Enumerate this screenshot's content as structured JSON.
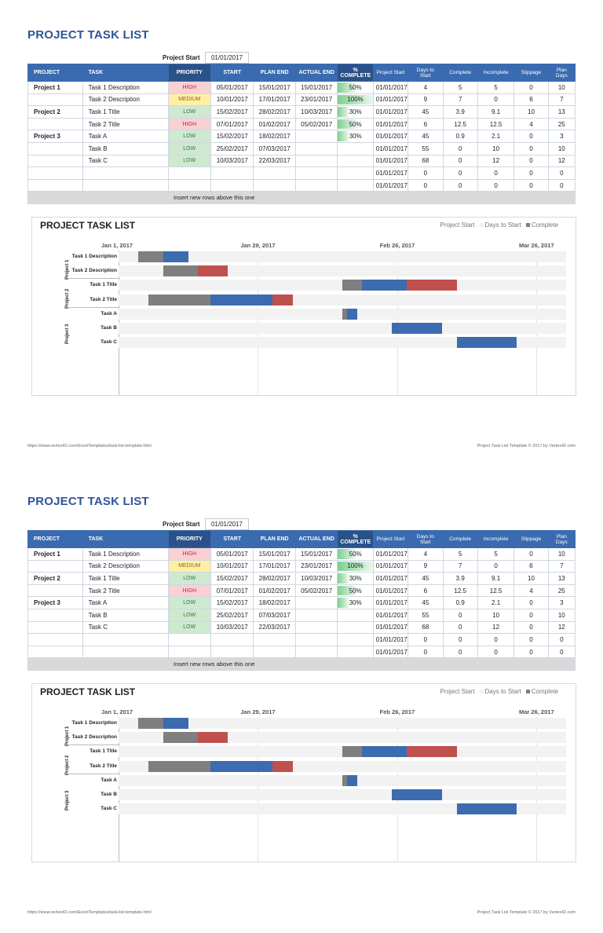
{
  "title": "PROJECT TASK LIST",
  "project_start_label": "Project Start",
  "project_start_value": "01/01/2017",
  "headers": [
    "PROJECT",
    "TASK",
    "PRIORITY",
    "START",
    "PLAN END",
    "ACTUAL END",
    "% COMPLETE",
    "Project Start",
    "Days to Start",
    "Complete",
    "Incomplete",
    "Slippage",
    "Plan Days"
  ],
  "rows": [
    {
      "project": "Project 1",
      "task": "Task 1 Description",
      "priority": "HIGH",
      "start": "05/01/2017",
      "plan_end": "15/01/2017",
      "actual_end": "15/01/2017",
      "pct": "50%",
      "pct_value": 0.5,
      "pstart": "01/01/2017",
      "days_to_start": "4",
      "complete": "5",
      "incomplete": "5",
      "slippage": "0",
      "plan_days": "10"
    },
    {
      "project": "",
      "task": "Task 2 Description",
      "priority": "MEDIUM",
      "start": "10/01/2017",
      "plan_end": "17/01/2017",
      "actual_end": "23/01/2017",
      "pct": "100%",
      "pct_value": 1.0,
      "pstart": "01/01/2017",
      "days_to_start": "9",
      "complete": "7",
      "incomplete": "0",
      "slippage": "6",
      "plan_days": "7"
    },
    {
      "project": "Project 2",
      "task": "Task 1 Title",
      "priority": "LOW",
      "start": "15/02/2017",
      "plan_end": "28/02/2017",
      "actual_end": "10/03/2017",
      "pct": "30%",
      "pct_value": 0.3,
      "pstart": "01/01/2017",
      "days_to_start": "45",
      "complete": "3.9",
      "incomplete": "9.1",
      "slippage": "10",
      "plan_days": "13"
    },
    {
      "project": "",
      "task": "Task 2 Title",
      "priority": "HIGH",
      "start": "07/01/2017",
      "plan_end": "01/02/2017",
      "actual_end": "05/02/2017",
      "pct": "50%",
      "pct_value": 0.5,
      "pstart": "01/01/2017",
      "days_to_start": "6",
      "complete": "12.5",
      "incomplete": "12.5",
      "slippage": "4",
      "plan_days": "25"
    },
    {
      "project": "Project 3",
      "task": "Task A",
      "priority": "LOW",
      "start": "15/02/2017",
      "plan_end": "18/02/2017",
      "actual_end": "",
      "pct": "30%",
      "pct_value": 0.3,
      "pstart": "01/01/2017",
      "days_to_start": "45",
      "complete": "0.9",
      "incomplete": "2.1",
      "slippage": "0",
      "plan_days": "3"
    },
    {
      "project": "",
      "task": "Task B",
      "priority": "LOW",
      "start": "25/02/2017",
      "plan_end": "07/03/2017",
      "actual_end": "",
      "pct": "",
      "pct_value": 0,
      "pstart": "01/01/2017",
      "days_to_start": "55",
      "complete": "0",
      "incomplete": "10",
      "slippage": "0",
      "plan_days": "10"
    },
    {
      "project": "",
      "task": "Task C",
      "priority": "LOW",
      "start": "10/03/2017",
      "plan_end": "22/03/2017",
      "actual_end": "",
      "pct": "",
      "pct_value": 0,
      "pstart": "01/01/2017",
      "days_to_start": "68",
      "complete": "0",
      "incomplete": "12",
      "slippage": "0",
      "plan_days": "12"
    },
    {
      "project": "",
      "task": "",
      "priority": "",
      "start": "",
      "plan_end": "",
      "actual_end": "",
      "pct": "",
      "pct_value": 0,
      "pstart": "01/01/2017",
      "days_to_start": "0",
      "complete": "0",
      "incomplete": "0",
      "slippage": "0",
      "plan_days": "0"
    },
    {
      "project": "",
      "task": "",
      "priority": "",
      "start": "",
      "plan_end": "",
      "actual_end": "",
      "pct": "",
      "pct_value": 0,
      "pstart": "01/01/2017",
      "days_to_start": "0",
      "complete": "0",
      "incomplete": "0",
      "slippage": "0",
      "plan_days": "0"
    }
  ],
  "insert_note": "Insert new rows above this one",
  "chart": {
    "title": "PROJECT TASK LIST",
    "legend": [
      "Project Start",
      "Days to Start",
      "Complete"
    ],
    "dates": [
      "Jan 1, 2017",
      "Jan 29, 2017",
      "Feb 26, 2017",
      "Mar 26, 2017"
    ],
    "projects": [
      "Project 1",
      "Project 2",
      "Project 3"
    ],
    "tasks": [
      "Task 1 Description",
      "Task 2 Description",
      "Task 1 Title",
      "Task 2 Title",
      "Task A",
      "Task B",
      "Task C"
    ]
  },
  "chart_data": {
    "type": "bar",
    "orientation": "horizontal",
    "stacked": true,
    "title": "PROJECT TASK LIST",
    "categories": [
      "Task 1 Description",
      "Task 2 Description",
      "Task 1 Title",
      "Task 2 Title",
      "Task A",
      "Task B",
      "Task C"
    ],
    "groups": [
      {
        "name": "Project 1",
        "tasks": 2
      },
      {
        "name": "Project 2",
        "tasks": 2
      },
      {
        "name": "Project 3",
        "tasks": 3
      }
    ],
    "series": [
      {
        "name": "Days to Start",
        "values": [
          4,
          9,
          45,
          6,
          45,
          55,
          68
        ]
      },
      {
        "name": "Complete",
        "values": [
          5,
          7,
          3.9,
          12.5,
          0.9,
          0,
          0
        ]
      },
      {
        "name": "Incomplete",
        "values": [
          5,
          0,
          9.1,
          12.5,
          2.1,
          10,
          12
        ]
      },
      {
        "name": "Slippage",
        "values": [
          0,
          6,
          10,
          4,
          0,
          0,
          0
        ]
      }
    ],
    "xlim": [
      0,
      90
    ],
    "xticks": [
      "Jan 1, 2017",
      "Jan 29, 2017",
      "Feb 26, 2017",
      "Mar 26, 2017"
    ],
    "legend_position": "top-right",
    "colors": {
      "background": "#f2f2f2",
      "days_to_start": "#f2f2f2",
      "complete": "#7f7f7f",
      "incomplete": "#3c6bb0",
      "slippage": "#c0504d"
    }
  },
  "footer": {
    "left": "https://www.vertex42.com/ExcelTemplates/task-list-template.html",
    "right": "Project Task List Template © 2017 by Vertex42.com"
  }
}
